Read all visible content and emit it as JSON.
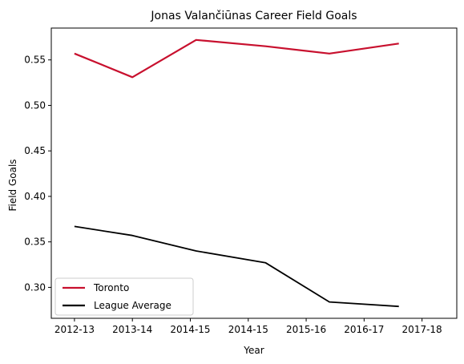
{
  "chart_data": {
    "type": "line",
    "title": "Jonas Valančiūnas Career Field Goals",
    "xlabel": "Year",
    "ylabel": "Field Goals",
    "x_tick_labels": [
      "2012-13",
      "2013-14",
      "2014-15",
      "2014-15",
      "2015-16",
      "2016-17",
      "2017-18"
    ],
    "xlim": [
      -0.4,
      6.6
    ],
    "ylim": [
      0.266,
      0.585
    ],
    "y_ticks": [
      0.3,
      0.35,
      0.4,
      0.45,
      0.5,
      0.55
    ],
    "y_tick_labels": [
      "0.30",
      "0.35",
      "0.40",
      "0.45",
      "0.50",
      "0.55"
    ],
    "grid": false,
    "legend_position": "lower-left",
    "series": [
      {
        "name": "Toronto",
        "color": "#c8102e",
        "x": [
          0,
          1,
          2.1,
          3.3,
          4.4,
          5.6
        ],
        "values": [
          0.557,
          0.531,
          0.572,
          0.565,
          0.557,
          0.568
        ]
      },
      {
        "name": "League Average",
        "color": "#000000",
        "x": [
          0,
          1,
          2.1,
          3.3,
          4.4,
          5.6
        ],
        "values": [
          0.367,
          0.357,
          0.34,
          0.327,
          0.284,
          0.279
        ]
      }
    ]
  }
}
